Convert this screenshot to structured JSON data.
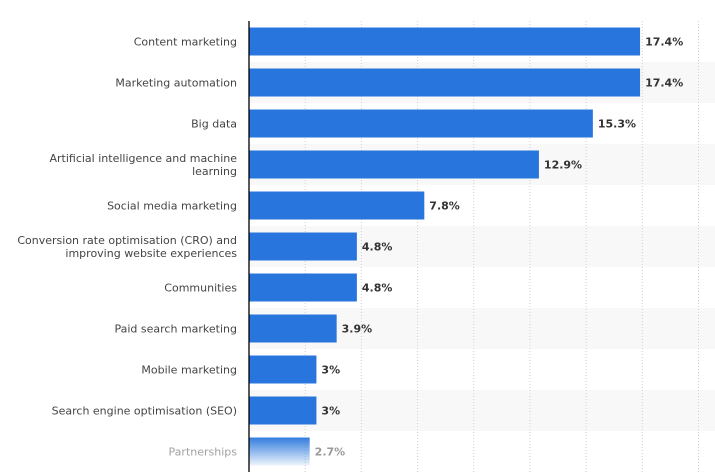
{
  "chart_data": {
    "type": "bar",
    "orientation": "horizontal",
    "categories": [
      "Content marketing",
      "Marketing automation",
      "Big data",
      "Artificial intelligence and machine learning",
      "Social media marketing",
      "Conversion rate optimisation (CRO) and improving website experiences",
      "Communities",
      "Paid search marketing",
      "Mobile marketing",
      "Search engine optimisation (SEO)",
      "Partnerships"
    ],
    "category_lines": [
      [
        "Content marketing"
      ],
      [
        "Marketing automation"
      ],
      [
        "Big data"
      ],
      [
        "Artificial intelligence and machine",
        "learning"
      ],
      [
        "Social media marketing"
      ],
      [
        "Conversion rate optimisation (CRO) and",
        "improving website experiences"
      ],
      [
        "Communities"
      ],
      [
        "Paid search marketing"
      ],
      [
        "Mobile marketing"
      ],
      [
        "Search engine optimisation (SEO)"
      ],
      [
        "Partnerships"
      ]
    ],
    "values": [
      17.4,
      17.4,
      15.3,
      12.9,
      7.8,
      4.8,
      4.8,
      3.9,
      3,
      3,
      2.7
    ],
    "data_labels": [
      "17.4%",
      "17.4%",
      "15.3%",
      "12.9%",
      "7.8%",
      "4.8%",
      "4.8%",
      "3.9%",
      "3%",
      "3%",
      "2.7%"
    ],
    "xlim": [
      0,
      20
    ],
    "grid_step": 2.5,
    "grid": true,
    "bar_color": "#2876dd",
    "title": "",
    "xlabel": "",
    "ylabel": ""
  }
}
